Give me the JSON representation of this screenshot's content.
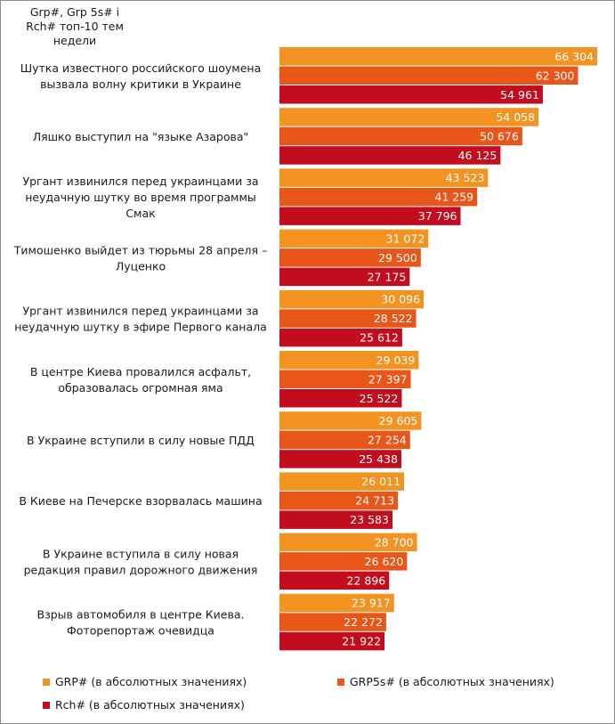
{
  "chart_data": {
    "type": "bar",
    "orientation": "horizontal",
    "title": "Grp#, Grp 5s#  і\nRch# топ-10 тем\nнедели",
    "categories": [
      "Шутка известного российского шоумена\nвызвала волну критики в Украине",
      "Ляшко выступил на \"языке Азарова\"",
      "Ургант извинился перед украинцами за\nнеудачную шутку во время программы\nСмак",
      "Тимошенко выйдет из тюрьмы 28 апреля –\nЛуценко",
      "Ургант извинился перед украинцами за\nнеудачную шутку в эфире Первого канала",
      "В центре Киева провалился асфальт,\nобразовалась огромная яма",
      "В Украине вступили в силу новые ПДД",
      "В Киеве на Печерске взорвалась машина",
      "В Украине вступила в силу новая\nредакция правил дорожного движения",
      "Взрыв автомобиля в центре Киева.\nФоторепортаж очевидца"
    ],
    "series": [
      {
        "name": "GRP# (в абсолютных значениях)",
        "color": "#f39321",
        "values": [
          66304,
          54058,
          43523,
          31072,
          30096,
          29039,
          29605,
          26011,
          28700,
          23917
        ],
        "labels": [
          "66 304",
          "54 058",
          "43 523",
          "31 072",
          "30 096",
          "29 039",
          "29 605",
          "26 011",
          "28 700",
          "23 917"
        ]
      },
      {
        "name": "GRP5s# (в абсолютных значениях)",
        "color": "#e8561a",
        "values": [
          62300,
          50676,
          41259,
          29500,
          28522,
          27397,
          27254,
          24713,
          26620,
          22272
        ],
        "labels": [
          "62 300",
          "50 676",
          "41 259",
          "29 500",
          "28 522",
          "27 397",
          "27 254",
          "24 713",
          "26 620",
          "22 272"
        ]
      },
      {
        "name": "Rch# (в абсолютных значениях)",
        "color": "#c20d1f",
        "values": [
          54961,
          46125,
          37796,
          27175,
          25612,
          25522,
          25438,
          23583,
          22896,
          21922
        ],
        "labels": [
          "54 961",
          "46 125",
          "37 796",
          "27 175",
          "25 612",
          "25 522",
          "25 438",
          "23 583",
          "22 896",
          "21 922"
        ]
      }
    ],
    "xlim": [
      0,
      66304
    ],
    "legend": "bottom",
    "grid": false
  }
}
